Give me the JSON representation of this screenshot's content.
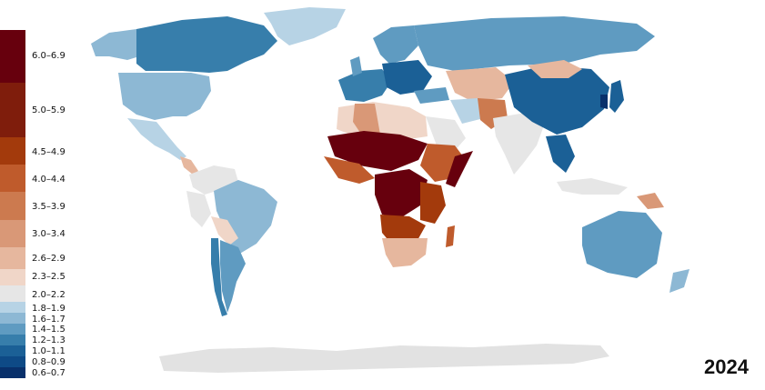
{
  "year": "2024",
  "legend": [
    {
      "label": "6.0–6.9",
      "color": "#67000d"
    },
    {
      "label": "5.0–5.9",
      "color": "#7f1d0c"
    },
    {
      "label": "4.5–4.9",
      "color": "#a33a0c"
    },
    {
      "label": "4.0–4.4",
      "color": "#bf5b2c"
    },
    {
      "label": "3.5–3.9",
      "color": "#cc7a4f"
    },
    {
      "label": "3.0–3.4",
      "color": "#d99877"
    },
    {
      "label": "2.6–2.9",
      "color": "#e6b79e"
    },
    {
      "label": "2.3–2.5",
      "color": "#f0d6c8"
    },
    {
      "label": "2.0–2.2",
      "color": "#e6e6e6"
    },
    {
      "label": "1.8–1.9",
      "color": "#b7d3e5"
    },
    {
      "label": "1.6–1.7",
      "color": "#8db8d4"
    },
    {
      "label": "1.4–1.5",
      "color": "#5f9bc1"
    },
    {
      "label": "1.2–1.3",
      "color": "#377eab"
    },
    {
      "label": "1.0–1.1",
      "color": "#1b6096"
    },
    {
      "label": "0.8–0.9",
      "color": "#0e4a86"
    },
    {
      "label": "0.6–0.7",
      "color": "#08306b"
    }
  ]
}
